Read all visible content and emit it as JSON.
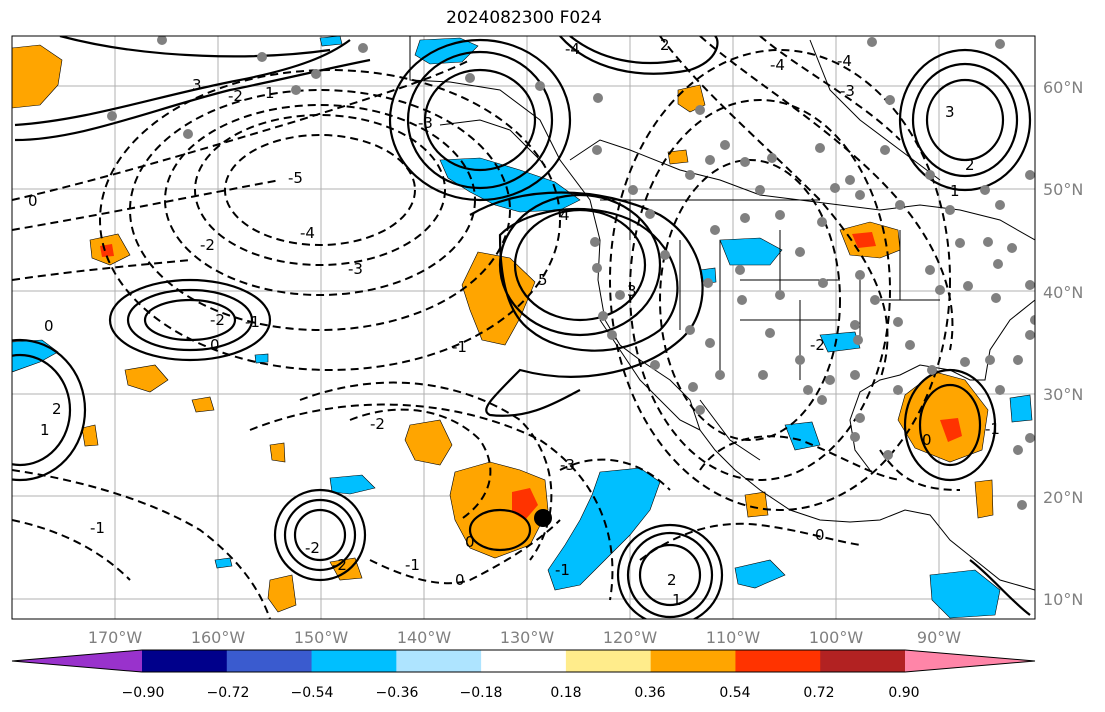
{
  "title": "2024082300 F024",
  "lat_labels": [
    "60°N",
    "50°N",
    "40°N",
    "30°N",
    "20°N",
    "10°N"
  ],
  "lon_labels": [
    "170°W",
    "160°W",
    "150°W",
    "140°W",
    "130°W",
    "120°W",
    "110°W",
    "100°W",
    "90°W"
  ],
  "colorbar": {
    "ticks": [
      "−0.90",
      "−0.72",
      "−0.54",
      "−0.36",
      "−0.18",
      "0.18",
      "0.36",
      "0.54",
      "0.72",
      "0.90"
    ],
    "colors": [
      "#9932cc",
      "#00008b",
      "#3a5bcf",
      "#00bfff",
      "#aee4ff",
      "#ffffff",
      "#ffec8b",
      "#ffa500",
      "#ff3300",
      "#b22222",
      "#ff85a8"
    ]
  },
  "contour_labels": [
    "0",
    "-2",
    "-3",
    "-4",
    "-5",
    "-2",
    "-1",
    "0",
    "-1",
    "-2",
    "-3",
    "-4",
    "5",
    "4",
    "3",
    "2",
    "1",
    "0",
    "-1",
    "-2",
    "-3",
    "-4",
    "1",
    "2",
    "0",
    "-2",
    "-1",
    "0",
    "-1",
    "-2",
    "0",
    "1",
    "2",
    "3",
    "1",
    "3",
    "2",
    "-4",
    "-3",
    "0",
    "-2",
    "-1"
  ],
  "colors": {
    "orange": "#ffa500",
    "red": "#ff3300",
    "blue": "#00bfff",
    "dot": "#808080",
    "grid": "#b0b0b0"
  }
}
